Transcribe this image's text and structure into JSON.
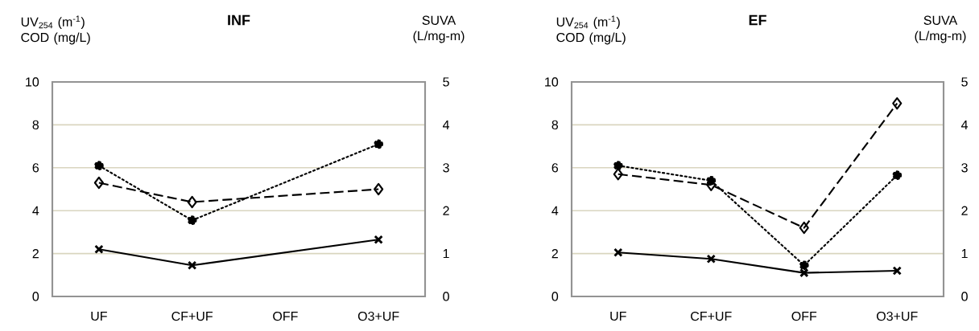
{
  "chart_data": [
    {
      "type": "line",
      "title": "INF",
      "ylabel": "UV$_{254}$ (m$^{-1}$) COD (mg/L)",
      "y2label": "SUVA (L/mg-m)",
      "categories": [
        "UF",
        "CF+UF",
        "OFF",
        "O3+UF"
      ],
      "series": [
        {
          "color": "#000000",
          "values": [
            6.1,
            3.55,
            null,
            7.1
          ],
          "marker": "circle",
          "line_style": "dotted"
        },
        {
          "color": "#000000",
          "values": [
            2.65,
            2.2,
            null,
            2.5
          ],
          "marker": "diamond",
          "line_style": "dashed",
          "axis": "y2"
        },
        {
          "color": "#000000",
          "values": [
            2.2,
            1.45,
            null,
            2.65
          ],
          "marker": "cross",
          "line_style": "solid"
        }
      ],
      "ylim": [
        0,
        10
      ],
      "yticks": [
        0,
        2,
        4,
        6,
        8,
        10
      ],
      "y2lim": [
        0,
        5
      ],
      "y2ticks": [
        0,
        1,
        2,
        3,
        4,
        5
      ],
      "grid": "y"
    },
    {
      "type": "line",
      "title": "EF",
      "ylabel": "UV$_{254}$ (m$^{-1}$) COD (mg/L)",
      "y2label": "SUVA (L/mg-m)",
      "categories": [
        "UF",
        "CF+UF",
        "OFF",
        "O3+UF"
      ],
      "series": [
        {
          "color": "#000000",
          "values": [
            6.1,
            5.4,
            1.45,
            5.65
          ],
          "marker": "circle",
          "line_style": "dotted"
        },
        {
          "color": "#000000",
          "values": [
            2.85,
            2.6,
            1.6,
            4.5
          ],
          "marker": "diamond",
          "line_style": "dashed",
          "axis": "y2"
        },
        {
          "color": "#000000",
          "values": [
            2.05,
            1.75,
            1.1,
            1.2
          ],
          "marker": "cross",
          "line_style": "solid"
        }
      ],
      "ylim": [
        0,
        10
      ],
      "yticks": [
        0,
        2,
        4,
        6,
        8,
        10
      ],
      "y2lim": [
        0,
        5
      ],
      "y2ticks": [
        0,
        1,
        2,
        3,
        4,
        5
      ],
      "grid": "y"
    }
  ]
}
